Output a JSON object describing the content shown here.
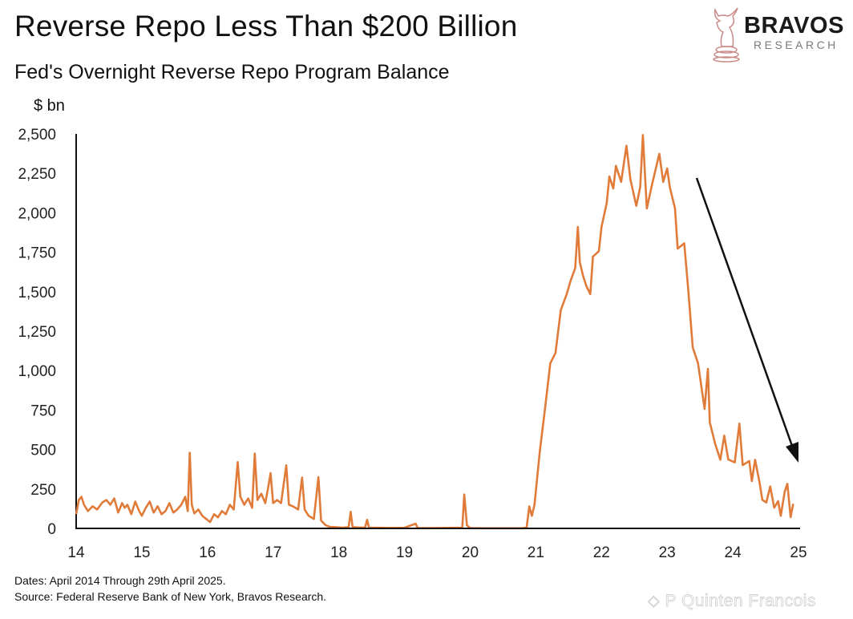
{
  "header": {
    "title": "Reverse Repo Less Than $200 Billion",
    "subtitle": "Fed's Overnight Reverse Repo Program Balance",
    "unit": "$ bn"
  },
  "logo": {
    "name": "BRAVOS",
    "tagline": "RESEARCH",
    "icon": "bull-chess-knight-icon",
    "color": "#c98a86"
  },
  "footer": {
    "dates": "Dates: April 2014 Through 29th April 2025.",
    "source": "Source: Federal Reserve Bank of New York, Bravos Research."
  },
  "watermark": "P Quinten Francois",
  "chart_data": {
    "type": "line",
    "title": "Fed's Overnight Reverse Repo Program Balance",
    "ylabel": "$ bn",
    "xlabel": "",
    "xlim": [
      14,
      25
    ],
    "ylim": [
      0,
      2500
    ],
    "x_ticks": [
      "14",
      "15",
      "16",
      "17",
      "18",
      "19",
      "20",
      "21",
      "22",
      "23",
      "24",
      "25"
    ],
    "y_ticks": [
      "0",
      "250",
      "500",
      "750",
      "1,000",
      "1,250",
      "1,500",
      "1,750",
      "2,000",
      "2,250",
      "2,500"
    ],
    "grid": false,
    "line_color": "#e07b3a",
    "annotation": "downward-arrow",
    "series": [
      {
        "x": [
          14.0,
          14.04,
          14.08,
          14.12,
          14.18,
          14.25,
          14.32,
          14.4,
          14.46,
          14.52,
          14.58,
          14.64,
          14.7,
          14.74,
          14.78,
          14.84,
          14.9,
          14.96,
          15.0,
          15.06,
          15.12,
          15.18,
          15.24,
          15.3,
          15.36,
          15.42,
          15.48,
          15.54,
          15.6,
          15.66,
          15.7,
          15.73,
          15.76,
          15.8,
          15.86,
          15.92,
          15.98,
          16.04,
          16.1,
          16.16,
          16.22,
          16.28,
          16.34,
          16.4,
          16.46,
          16.5,
          16.56,
          16.62,
          16.68,
          16.72,
          16.76,
          16.82,
          16.88,
          16.92,
          16.96,
          17.0,
          17.06,
          17.12,
          17.2,
          17.24,
          17.3,
          17.38,
          17.44,
          17.48,
          17.54,
          17.62,
          17.69,
          17.73,
          17.8,
          17.86,
          17.95,
          18.05,
          18.15,
          18.18,
          18.21,
          18.3,
          18.4,
          18.43,
          18.46,
          18.6,
          18.8,
          19.0,
          19.17,
          19.2,
          19.4,
          19.6,
          19.8,
          19.88,
          19.91,
          19.95,
          20.0,
          20.2,
          20.4,
          20.6,
          20.8,
          20.86,
          20.9,
          20.94,
          20.98,
          21.06,
          21.14,
          21.22,
          21.3,
          21.38,
          21.47,
          21.53,
          21.6,
          21.64,
          21.67,
          21.72,
          21.77,
          21.83,
          21.87,
          21.96,
          22.0,
          22.08,
          22.12,
          22.18,
          22.22,
          22.3,
          22.38,
          22.44,
          22.53,
          22.59,
          22.63,
          22.69,
          22.77,
          22.88,
          22.94,
          23.0,
          23.04,
          23.12,
          23.16,
          23.26,
          23.32,
          23.39,
          23.47,
          23.57,
          23.62,
          23.65,
          23.73,
          23.81,
          23.87,
          23.93,
          24.03,
          24.1,
          24.15,
          24.25,
          24.29,
          24.34,
          24.41,
          24.45,
          24.51,
          24.57,
          24.63,
          24.69,
          24.73,
          24.79,
          24.83,
          24.88,
          24.92
        ],
        "y": [
          90,
          180,
          200,
          150,
          110,
          140,
          120,
          165,
          180,
          150,
          190,
          100,
          160,
          130,
          150,
          90,
          170,
          110,
          80,
          130,
          170,
          100,
          140,
          90,
          110,
          160,
          100,
          120,
          150,
          200,
          110,
          480,
          150,
          95,
          120,
          80,
          60,
          40,
          90,
          70,
          110,
          90,
          150,
          120,
          420,
          200,
          150,
          190,
          130,
          474,
          180,
          220,
          160,
          250,
          350,
          160,
          180,
          160,
          400,
          150,
          140,
          120,
          322,
          120,
          80,
          60,
          325,
          50,
          20,
          10,
          8,
          5,
          8,
          105,
          8,
          6,
          5,
          55,
          5,
          4,
          3,
          4,
          30,
          3,
          2,
          3,
          4,
          3,
          215,
          20,
          2,
          1,
          1,
          1,
          1,
          5,
          139,
          80,
          150,
          487,
          757,
          1046,
          1112,
          1383,
          1485,
          1570,
          1650,
          1910,
          1688,
          1600,
          1536,
          1485,
          1722,
          1757,
          1910,
          2062,
          2230,
          2154,
          2298,
          2196,
          2425,
          2213,
          2044,
          2163,
          2493,
          2027,
          2179,
          2374,
          2196,
          2281,
          2163,
          2027,
          1773,
          1807,
          1519,
          1147,
          1046,
          757,
          1011,
          672,
          537,
          435,
          588,
          437,
          418,
          664,
          401,
          427,
          300,
          435,
          283,
          181,
          164,
          266,
          131,
          173,
          80,
          232,
          283,
          71,
          156
        ]
      }
    ]
  }
}
